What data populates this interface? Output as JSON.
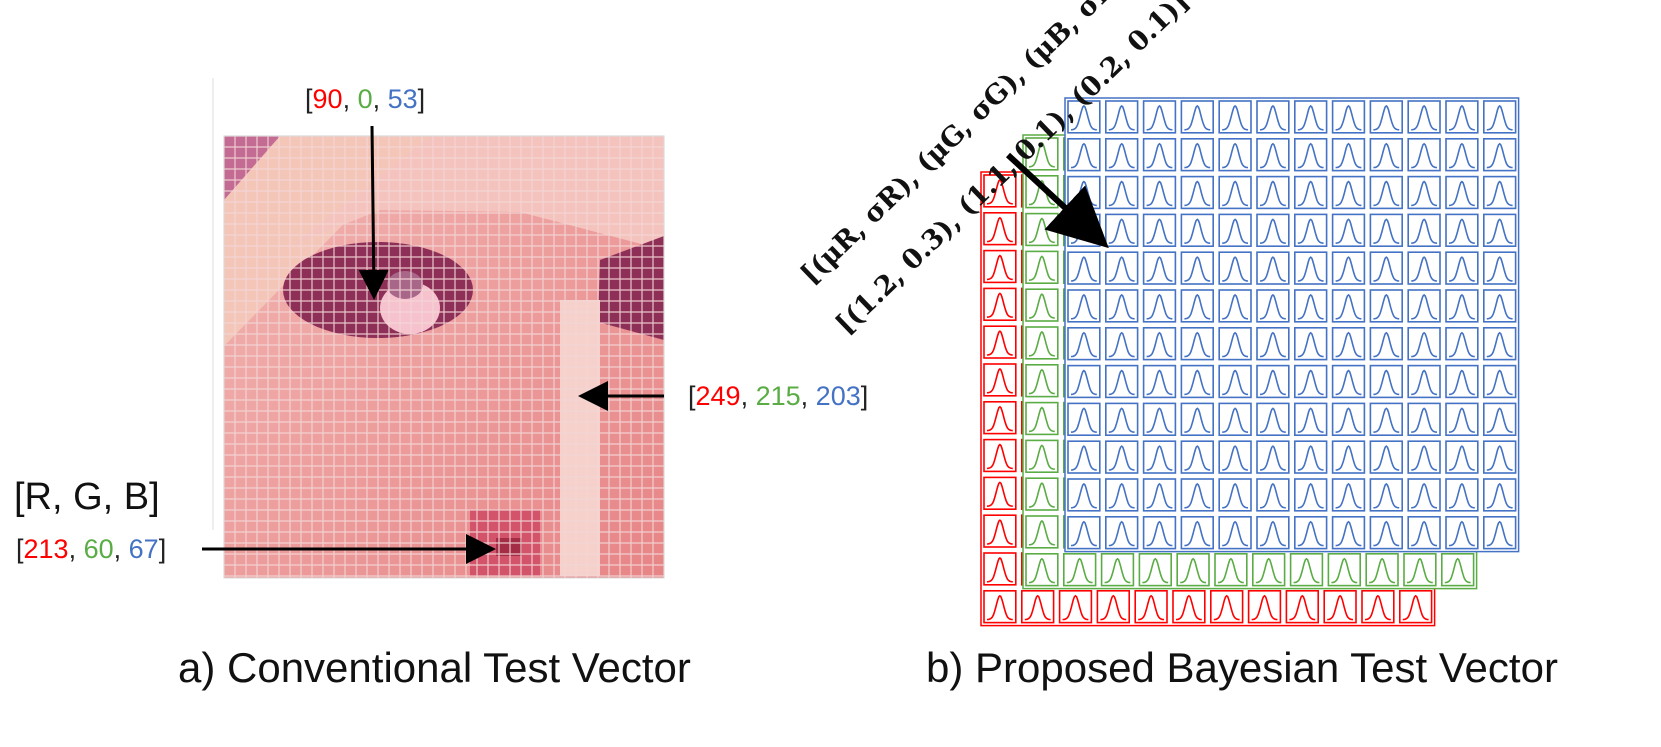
{
  "colors": {
    "red": "#ff0000",
    "green": "#5aac44",
    "blue": "#4472c4",
    "arrow": "#000000"
  },
  "left_panel": {
    "caption": "a) Conventional Test Vector",
    "header": "[R, G, B]",
    "labels": [
      {
        "name": "top",
        "r": "90",
        "g": "0",
        "b": "53"
      },
      {
        "name": "right",
        "r": "249",
        "g": "215",
        "b": "203"
      },
      {
        "name": "bottom",
        "r": "213",
        "g": "60",
        "b": "67"
      }
    ]
  },
  "right_panel": {
    "caption": "b) Proposed Bayesian Test Vector",
    "formula_line1": "[(μR, σR), (μG, σG), (μB, σB)]",
    "formula_line2": "[(1.2, 0.3), (1.1, 0.1), (0.2, 0.1)]",
    "layers": [
      {
        "channel": "R",
        "color": "#ff0000",
        "grid_cells": 12
      },
      {
        "channel": "G",
        "color": "#5aac44",
        "grid_cells": 12
      },
      {
        "channel": "B",
        "color": "#4472c4",
        "grid_cells": 12
      }
    ]
  }
}
